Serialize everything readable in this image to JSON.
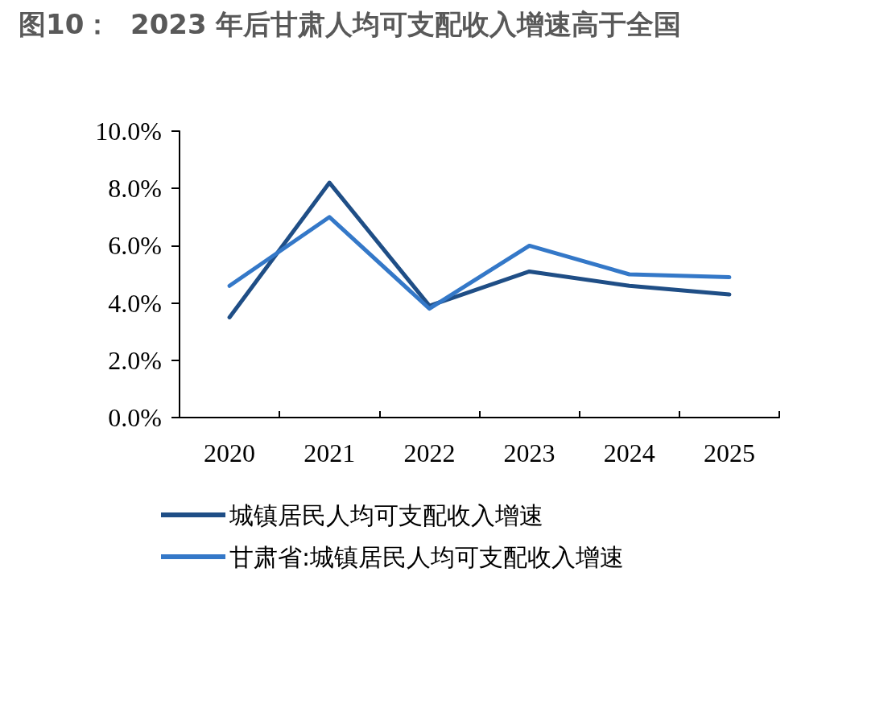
{
  "chart_data": {
    "type": "line",
    "title": "图10：  2023 年后甘肃人均可支配收入增速高于全国",
    "categories": [
      "2020",
      "2021",
      "2022",
      "2023",
      "2024",
      "2025"
    ],
    "series": [
      {
        "name": "城镇居民人均可支配收入增速",
        "color": "#1f4e86",
        "values": [
          3.5,
          8.2,
          3.9,
          5.1,
          4.6,
          4.3
        ]
      },
      {
        "name": "甘肃省:城镇居民人均可支配收入增速",
        "color": "#3478c8",
        "values": [
          4.6,
          7.0,
          3.8,
          6.0,
          5.0,
          4.9
        ]
      }
    ],
    "ylim": [
      0,
      10
    ],
    "yticks": [
      {
        "value": 0,
        "label": "0.0%"
      },
      {
        "value": 2,
        "label": "2.0%"
      },
      {
        "value": 4,
        "label": "4.0%"
      },
      {
        "value": 6,
        "label": "6.0%"
      },
      {
        "value": 8,
        "label": "8.0%"
      },
      {
        "value": 10,
        "label": "10.0%"
      }
    ],
    "grid": false,
    "legend": "bottom",
    "marker": "none",
    "line_style": "solid"
  }
}
